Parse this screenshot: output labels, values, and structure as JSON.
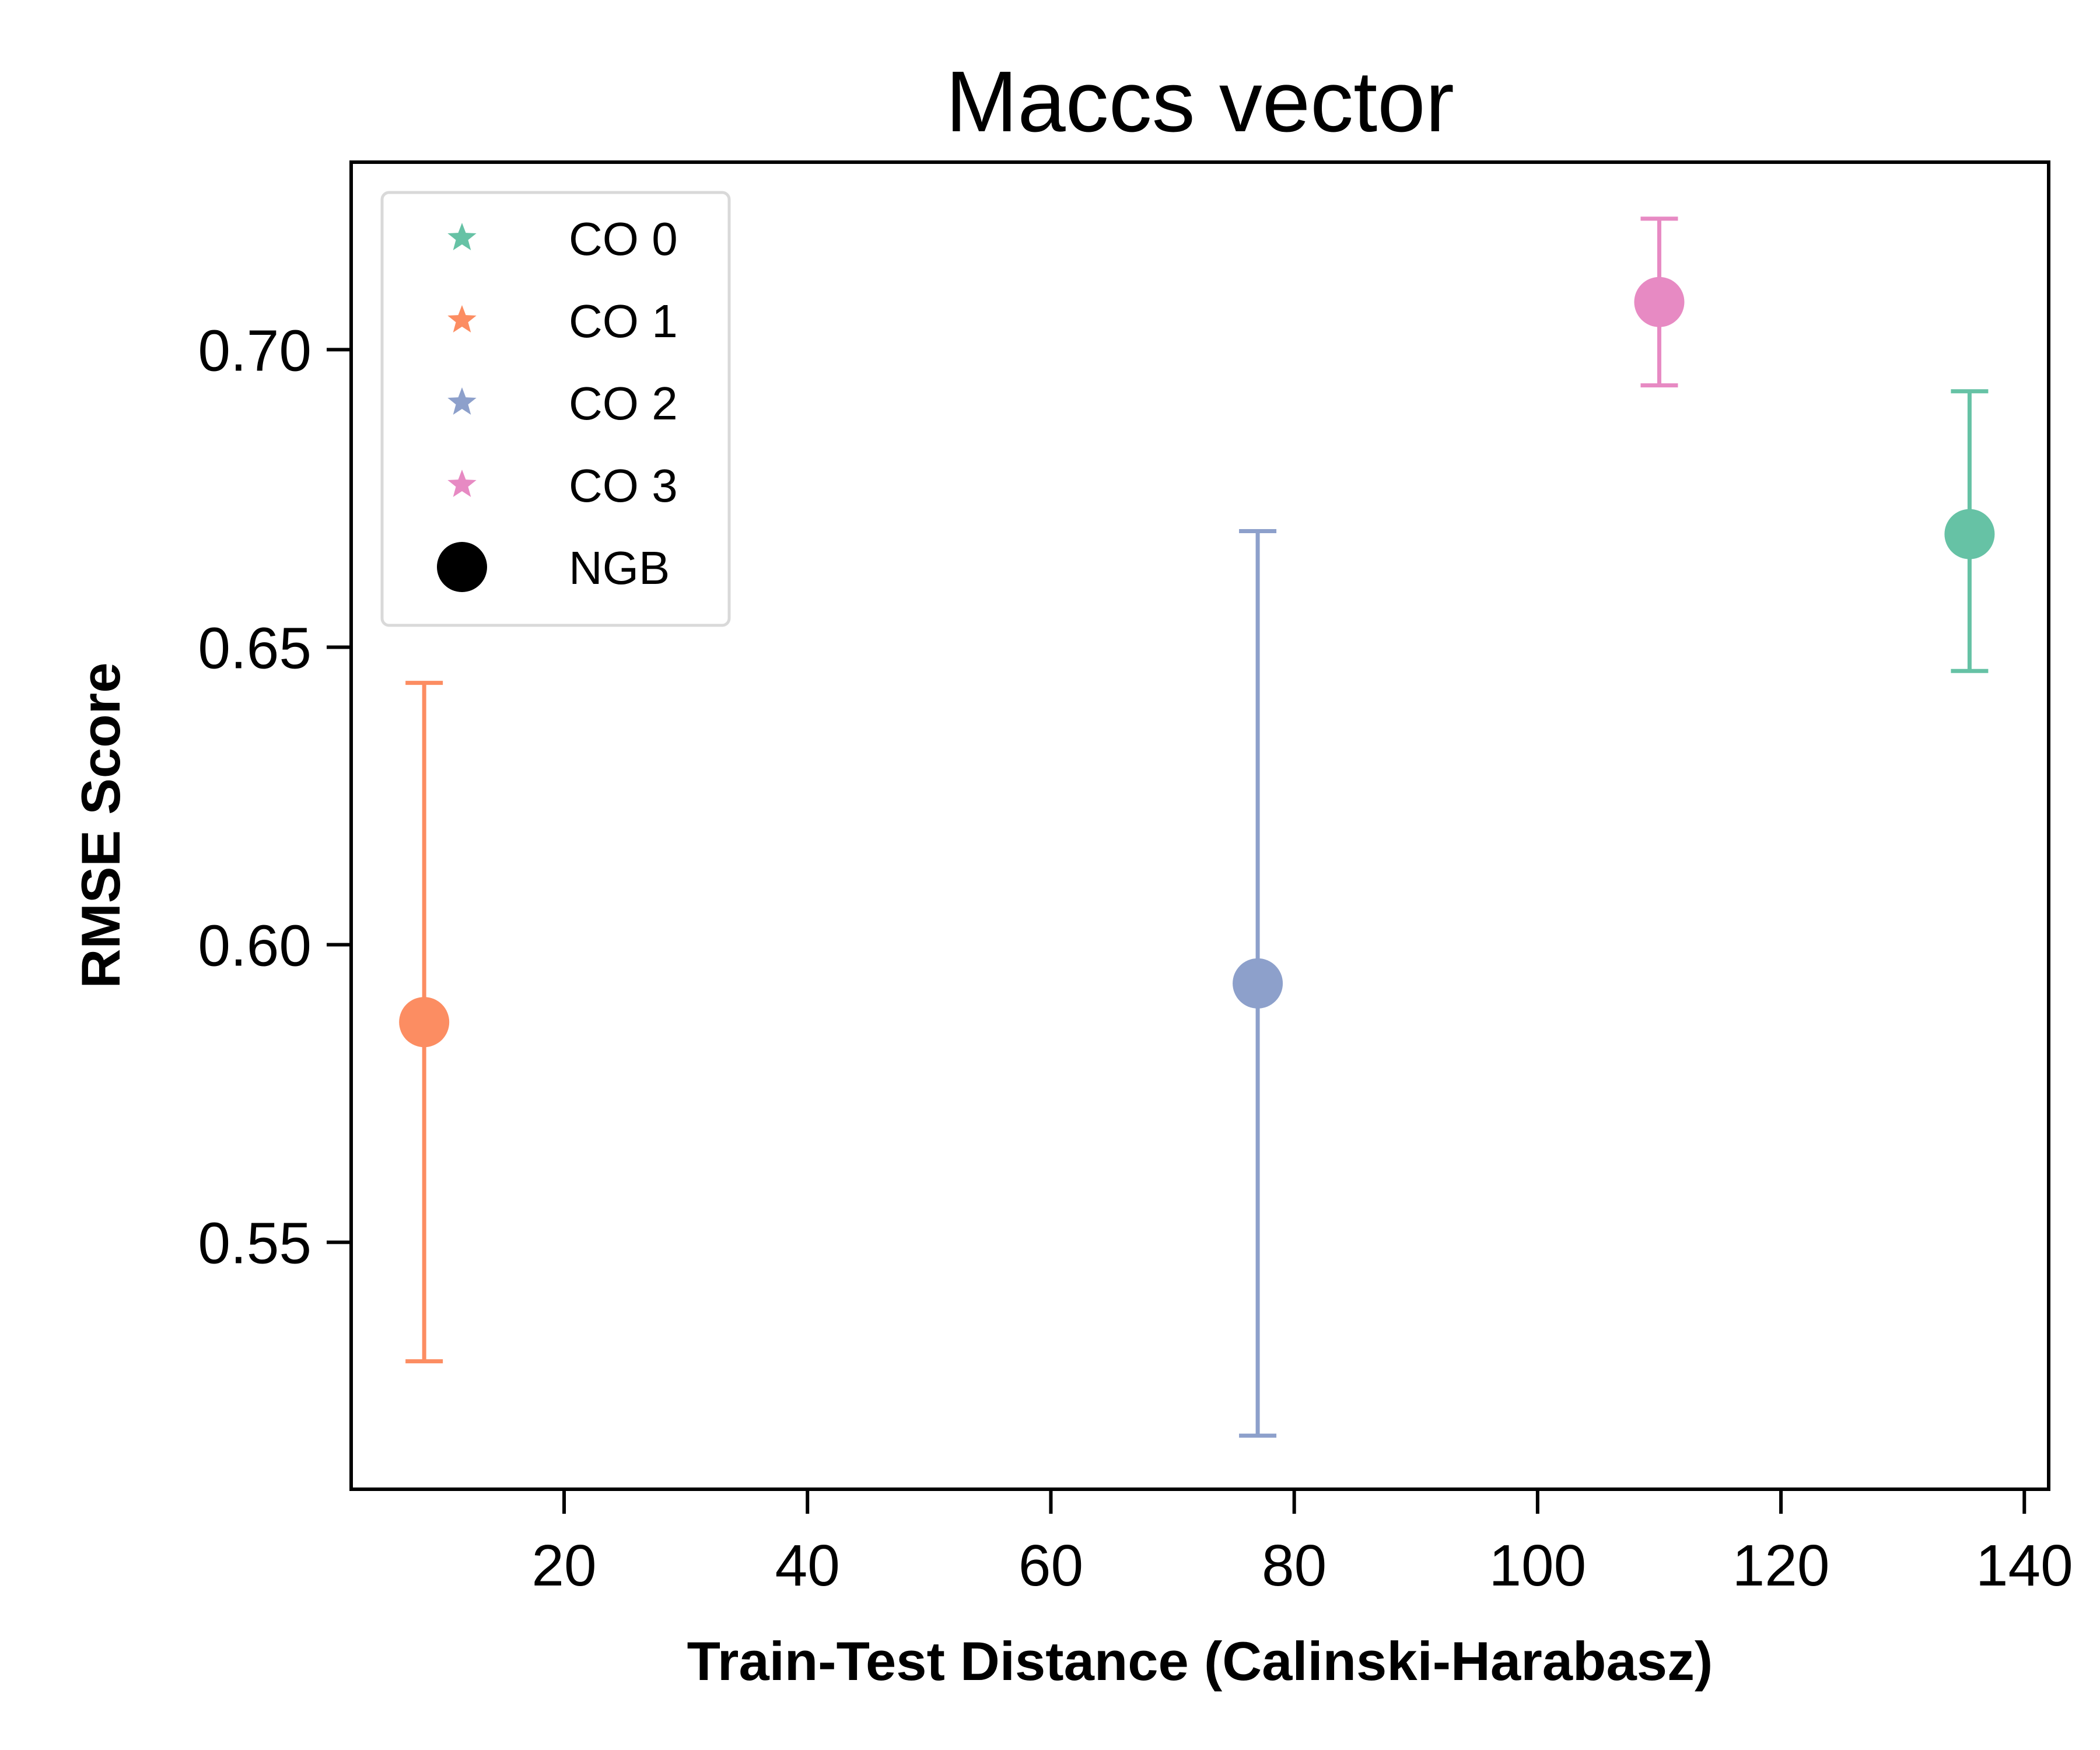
{
  "chart_data": {
    "type": "scatter",
    "title": "Maccs vector",
    "xlabel": "Train-Test Distance (Calinski-Harabasz)",
    "ylabel": "RMSE Score",
    "xlim": [
      2.5,
      142
    ],
    "ylim": [
      0.5085,
      0.7315
    ],
    "xticks": [
      20,
      40,
      60,
      80,
      100,
      120,
      140
    ],
    "yticks": [
      0.55,
      0.6,
      0.65,
      0.7
    ],
    "xtick_labels": [
      "20",
      "40",
      "60",
      "80",
      "100",
      "120",
      "140"
    ],
    "ytick_labels": [
      "0.55",
      "0.60",
      "0.65",
      "0.70"
    ],
    "grid": false,
    "legend_position": "top-left",
    "legend": [
      {
        "label": "CO 0",
        "marker": "star",
        "color": "#66c2a5"
      },
      {
        "label": "CO 1",
        "marker": "star",
        "color": "#fc8d62"
      },
      {
        "label": "CO 2",
        "marker": "star",
        "color": "#8da0cb"
      },
      {
        "label": "CO 3",
        "marker": "star",
        "color": "#e78ac3"
      },
      {
        "label": "NGB",
        "marker": "circle",
        "color": "#000000"
      }
    ],
    "series": [
      {
        "name": "CO 0",
        "color": "#66c2a5",
        "x": 135.5,
        "y": 0.669,
        "err_low": 0.646,
        "err_high": 0.693
      },
      {
        "name": "CO 1",
        "color": "#fc8d62",
        "x": 8.5,
        "y": 0.587,
        "err_low": 0.53,
        "err_high": 0.644
      },
      {
        "name": "CO 2",
        "color": "#8da0cb",
        "x": 77.0,
        "y": 0.5935,
        "err_low": 0.5175,
        "err_high": 0.6695
      },
      {
        "name": "CO 3",
        "color": "#e78ac3",
        "x": 110.0,
        "y": 0.708,
        "err_low": 0.694,
        "err_high": 0.722
      }
    ]
  }
}
